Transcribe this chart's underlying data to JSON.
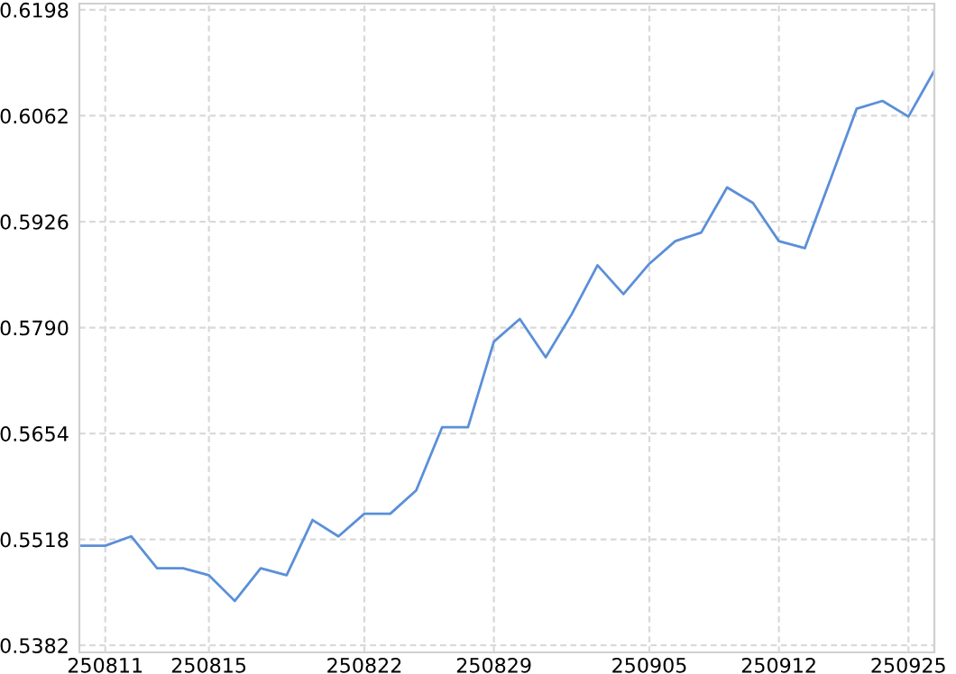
{
  "chart_data": {
    "type": "line",
    "categories": [
      null,
      "250811",
      null,
      null,
      null,
      "250815",
      null,
      null,
      null,
      null,
      null,
      "250822",
      null,
      null,
      null,
      null,
      "250829",
      null,
      null,
      null,
      null,
      null,
      "250905",
      null,
      null,
      null,
      null,
      "250912",
      null,
      null,
      null,
      null,
      "250925",
      null
    ],
    "series": [
      {
        "color": "#5b8fd9",
        "values": [
          0.551,
          0.551,
          0.5522,
          0.5481,
          0.5481,
          0.5472,
          0.5439,
          0.5481,
          0.5472,
          0.5543,
          0.5522,
          0.5551,
          0.5551,
          0.5581,
          0.5662,
          0.5662,
          0.5772,
          0.5801,
          0.5752,
          0.5807,
          0.587,
          0.5833,
          0.5872,
          0.5901,
          0.5912,
          0.597,
          0.595,
          0.5901,
          0.5892,
          0.5981,
          0.6071,
          0.6081,
          0.6061,
          0.612
        ]
      }
    ],
    "ylim": [
      0.5373,
      0.6206
    ],
    "yticks": [
      0.5382,
      0.5518,
      0.5654,
      {
        "value": 0.579,
        "label": "0.5790"
      },
      0.5926,
      0.6062,
      0.6198
    ],
    "grid": true,
    "legend": false,
    "marker": "none",
    "line_style": "solid"
  }
}
